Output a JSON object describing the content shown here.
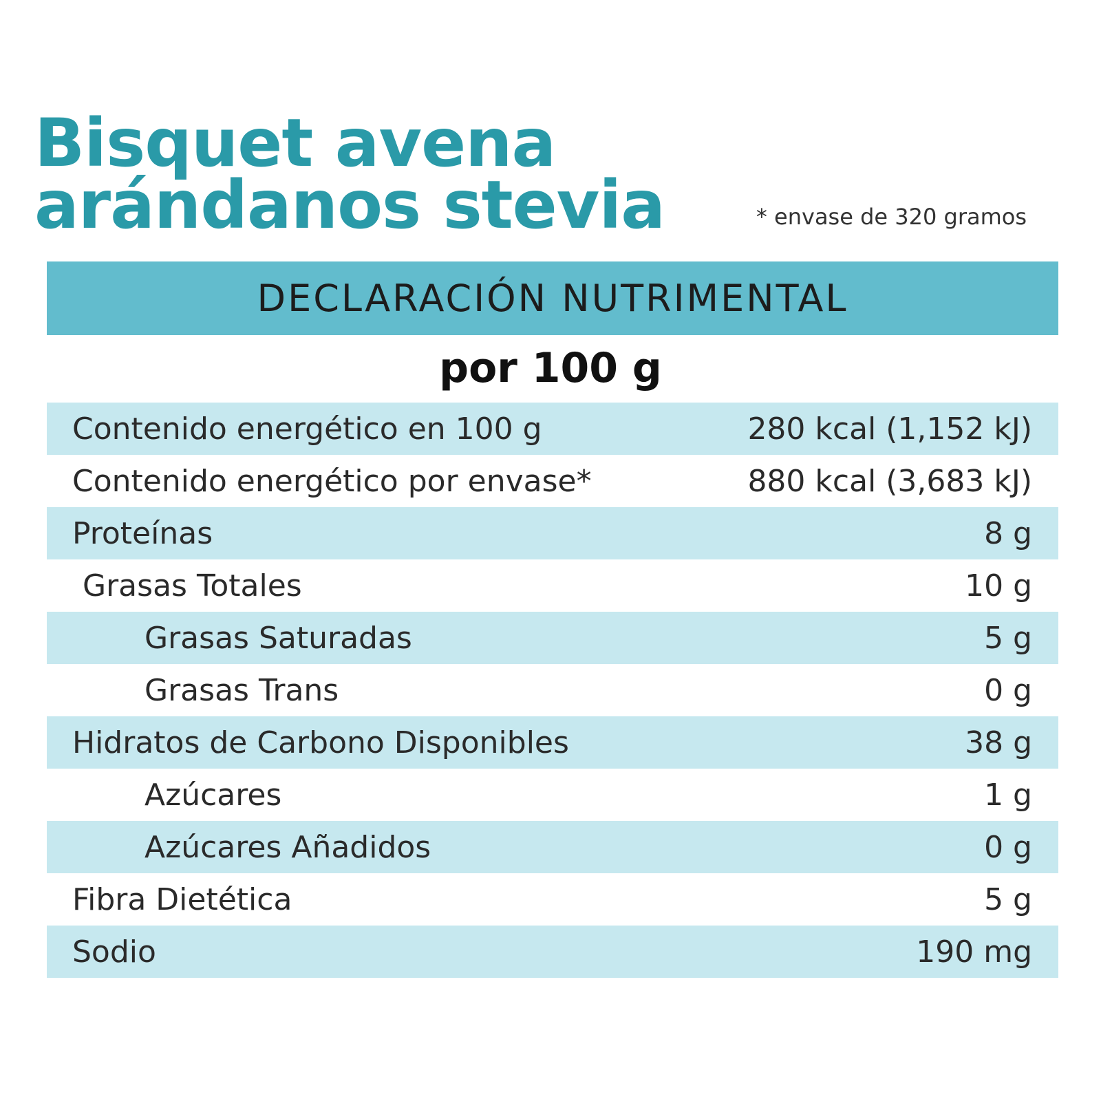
{
  "header": {
    "title_lines": [
      "Bisquet avena",
      "arándanos stevia"
    ],
    "note": "* envase de 320 gramos"
  },
  "table": {
    "title": "DECLARACIÓN NUTRIMENTAL",
    "subtitle": "por 100 g",
    "rows": [
      [
        "Contenido energético en 100 g",
        "280 kcal (1,152 kJ)"
      ],
      [
        "Contenido energético por envase*",
        "880 kcal (3,683 kJ)"
      ],
      [
        "Proteínas",
        "8 g"
      ],
      [
        "Grasas Totales",
        "10 g"
      ],
      [
        "Grasas Saturadas",
        "5 g"
      ],
      [
        "Grasas Trans",
        "0 g"
      ],
      [
        "Hidratos de Carbono Disponibles",
        "38 g"
      ],
      [
        "Azúcares",
        "1 g"
      ],
      [
        "Azúcares Añadidos",
        "0 g"
      ],
      [
        "Fibra Dietética",
        "5 g"
      ],
      [
        "Sodio",
        "190 mg"
      ]
    ]
  }
}
